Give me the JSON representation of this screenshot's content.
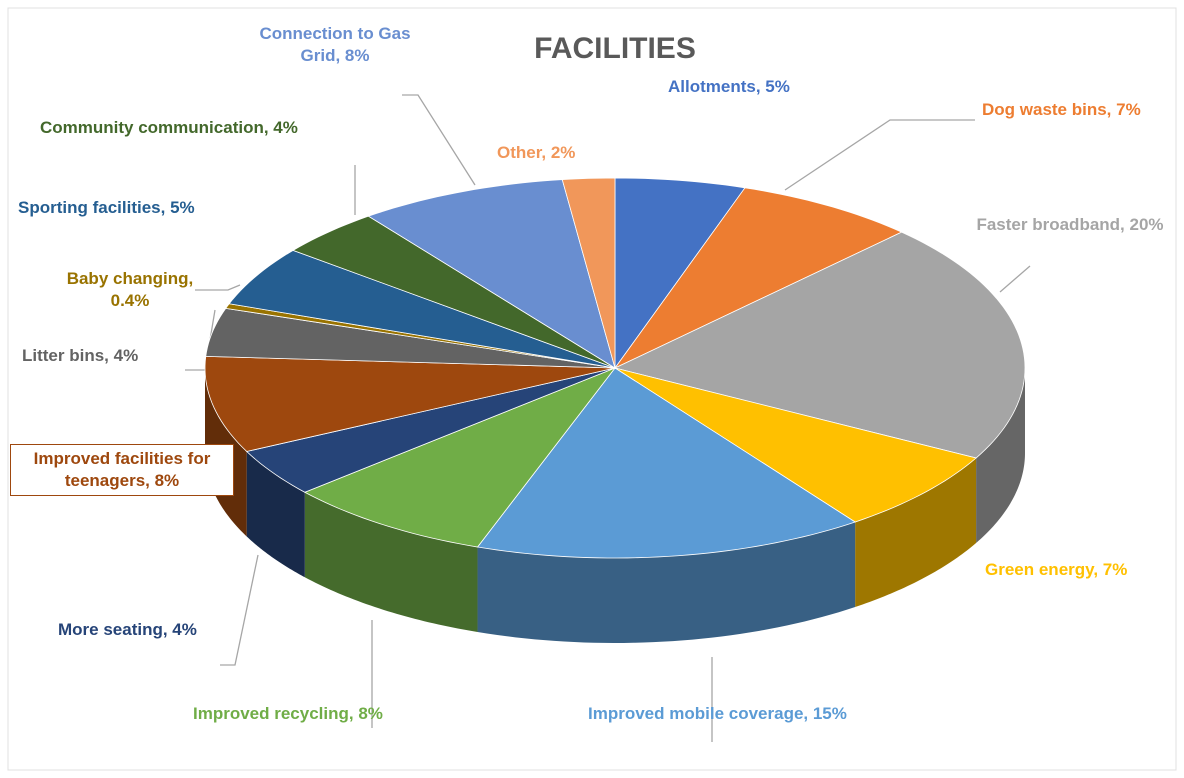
{
  "chart_data": {
    "type": "pie",
    "title": "FACILITIES",
    "values": [
      5,
      7,
      20,
      7,
      15,
      8,
      4,
      8,
      4,
      0.4,
      5,
      4,
      8,
      2
    ],
    "value_labels": [
      "Allotments, 5%",
      "Dog waste bins, 7%",
      "Faster broadband, 20%",
      "Green energy, 7%",
      "Improved mobile coverage, 15%",
      "Improved recycling, 8%",
      "More seating, 4%",
      "Improved facilities for teenagers, 8%",
      "Litter bins, 4%",
      "Baby changing, 0.4%",
      "Sporting facilities, 5%",
      "Community communication, 4%",
      "Connection to Gas Grid, 8%",
      "Other, 2%"
    ],
    "colors": [
      "#4472c4",
      "#ed7d31",
      "#a5a5a5",
      "#ffc000",
      "#5b9bd5",
      "#70ad47",
      "#264478",
      "#9e480e",
      "#636363",
      "#997300",
      "#255e91",
      "#43682b",
      "#698ed0",
      "#f1975a"
    ]
  }
}
